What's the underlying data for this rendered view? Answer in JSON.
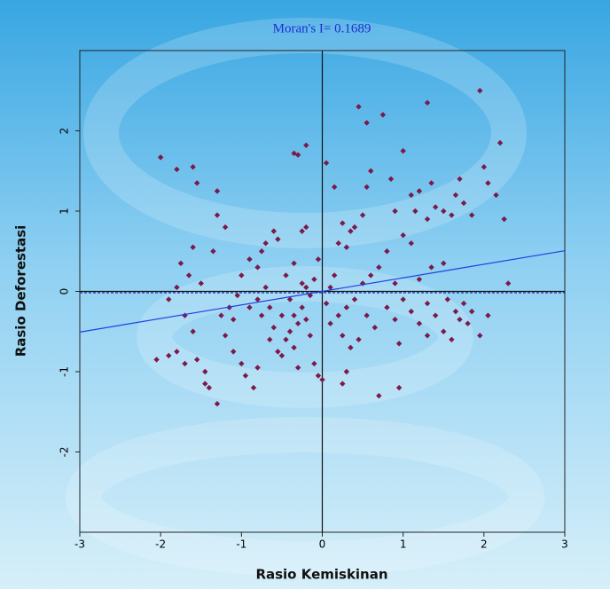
{
  "chart_data": {
    "type": "scatter",
    "title": "Moran's I= 0.1689",
    "x_label": "Rasio Kemiskinan",
    "y_label": "Rasio Deforestasi",
    "xlim": [
      -3,
      3
    ],
    "ylim": [
      -3,
      3
    ],
    "xticks": [
      -3,
      -2,
      -1,
      0,
      1,
      2,
      3
    ],
    "yticks": [
      -2,
      -1,
      0,
      1,
      2
    ],
    "trend_line": {
      "slope": 0.1689,
      "intercept": 0,
      "color": "#1f3fe0"
    },
    "series": [
      {
        "color": "#7b1a4a",
        "x": [
          -2.0,
          -1.8,
          -1.6,
          -1.55,
          -1.3,
          -1.3,
          -1.2,
          -1.35,
          -1.6,
          -1.75,
          -1.65,
          -1.5,
          -1.8,
          -1.9,
          -1.7,
          -1.6,
          -2.05,
          -1.9,
          -1.8,
          -1.7,
          -1.55,
          -1.45,
          -1.4,
          -1.3,
          -1.45,
          -1.2,
          -1.1,
          -1.0,
          -0.95,
          -0.85,
          -0.8,
          -1.25,
          -1.15,
          -1.05,
          -1.0,
          -0.9,
          -0.8,
          -0.75,
          -0.7,
          -0.6,
          -0.55,
          -0.45,
          -0.4,
          -0.5,
          -0.6,
          -0.65,
          -0.55,
          -0.5,
          -0.45,
          -0.4,
          -0.35,
          -0.3,
          -0.25,
          -0.2,
          -0.15,
          -0.1,
          -0.05,
          0.0,
          -0.3,
          -0.35,
          -0.25,
          -0.2,
          -0.15,
          -0.1,
          -0.05,
          -0.2,
          -0.25,
          -0.3,
          -0.35,
          -0.2,
          -0.35,
          -0.7,
          -0.8,
          -0.9,
          -1.1,
          -0.75,
          -0.65,
          0.05,
          0.15,
          0.2,
          0.25,
          0.3,
          0.35,
          0.4,
          0.5,
          0.55,
          0.6,
          0.45,
          0.55,
          0.75,
          0.85,
          0.9,
          1.0,
          1.1,
          1.15,
          1.2,
          1.3,
          1.35,
          1.4,
          1.5,
          1.3,
          1.6,
          1.65,
          1.7,
          1.75,
          1.85,
          1.95,
          2.0,
          2.05,
          2.15,
          2.2,
          2.25,
          2.3,
          1.1,
          1.0,
          0.8,
          0.7,
          0.6,
          0.5,
          0.4,
          0.3,
          0.2,
          0.1,
          0.25,
          0.35,
          0.45,
          0.55,
          0.65,
          0.8,
          0.9,
          1.0,
          1.1,
          1.2,
          1.3,
          1.4,
          1.5,
          1.55,
          1.65,
          1.7,
          1.8,
          1.75,
          1.85,
          1.95,
          2.05,
          1.6,
          1.3,
          0.95,
          0.3,
          0.25,
          0.7,
          0.95,
          0.1,
          0.15,
          0.05,
          1.35,
          1.5,
          1.2,
          0.9
        ],
        "y": [
          1.67,
          1.52,
          1.55,
          1.35,
          1.25,
          0.95,
          0.8,
          0.5,
          0.55,
          0.35,
          0.2,
          0.1,
          0.05,
          -0.1,
          -0.3,
          -0.5,
          -0.85,
          -0.8,
          -0.75,
          -0.9,
          -0.85,
          -1.0,
          -1.2,
          -1.4,
          -1.15,
          -0.55,
          -0.75,
          -0.9,
          -1.05,
          -1.2,
          -0.95,
          -0.3,
          -0.2,
          -0.05,
          0.2,
          0.4,
          0.3,
          0.5,
          0.6,
          0.75,
          0.65,
          0.2,
          -0.1,
          -0.3,
          -0.45,
          -0.6,
          -0.75,
          -0.8,
          -0.6,
          -0.5,
          -0.7,
          -0.4,
          -0.2,
          -0.35,
          -0.55,
          -0.9,
          -1.05,
          -1.1,
          -0.95,
          -0.3,
          0.1,
          0.05,
          -0.05,
          0.15,
          0.4,
          0.8,
          0.75,
          1.7,
          1.72,
          1.82,
          0.35,
          0.05,
          -0.1,
          -0.2,
          -0.35,
          -0.3,
          -0.2,
          1.6,
          1.3,
          0.6,
          0.85,
          0.55,
          0.75,
          0.8,
          0.95,
          1.3,
          1.5,
          2.3,
          2.1,
          2.2,
          1.4,
          1.0,
          1.75,
          1.2,
          1.0,
          1.25,
          0.9,
          1.35,
          1.05,
          1.0,
          2.35,
          0.95,
          1.2,
          1.4,
          1.1,
          0.95,
          2.5,
          1.55,
          1.35,
          1.2,
          1.85,
          0.9,
          0.1,
          0.6,
          0.7,
          0.5,
          0.3,
          0.2,
          0.1,
          -0.1,
          -0.2,
          -0.3,
          -0.4,
          -0.55,
          -0.7,
          -0.6,
          -0.3,
          -0.45,
          -0.2,
          -0.35,
          -0.1,
          -0.25,
          -0.4,
          -0.15,
          -0.3,
          -0.5,
          -0.1,
          -0.25,
          -0.35,
          -0.4,
          -0.15,
          -0.25,
          -0.55,
          -0.3,
          -0.6,
          -0.55,
          -0.65,
          -1.0,
          -1.15,
          -1.3,
          -1.2,
          0.05,
          0.2,
          -0.15,
          0.3,
          0.35,
          0.15,
          0.1
        ]
      }
    ]
  }
}
